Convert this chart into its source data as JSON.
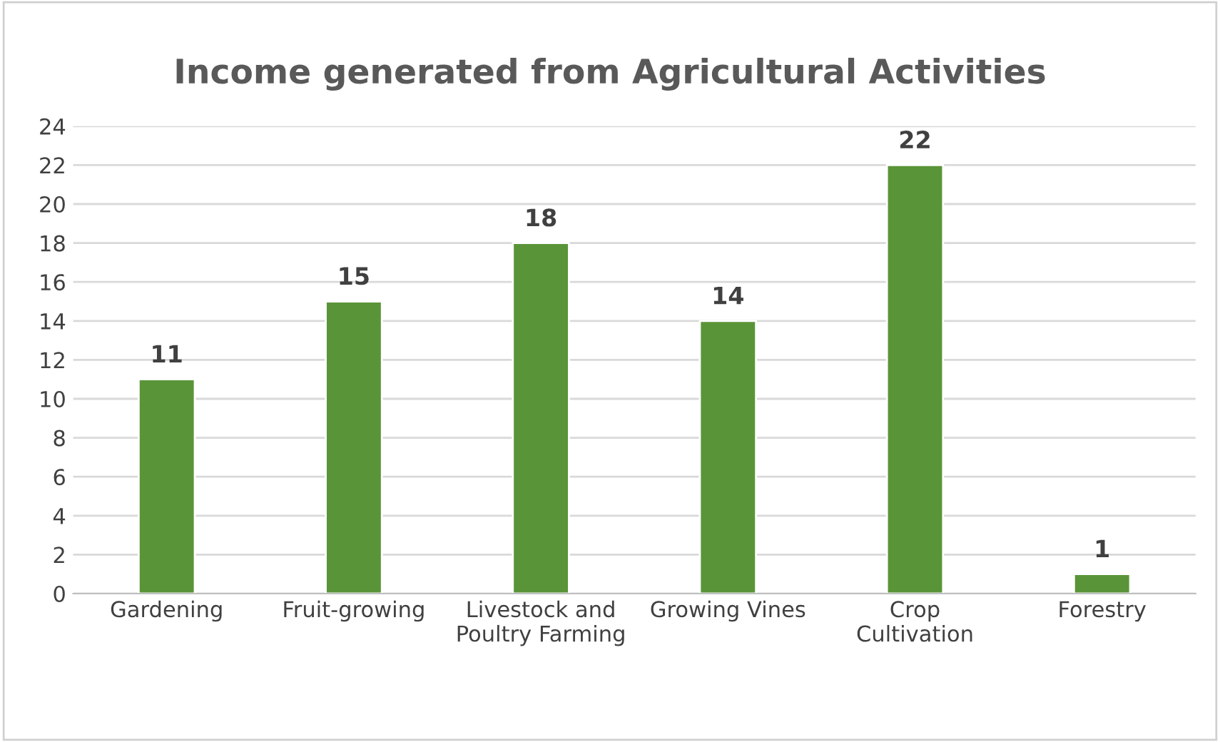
{
  "chart_data": {
    "type": "bar",
    "title": "Income generated from Agricultural Activities",
    "categories": [
      "Gardening",
      "Fruit-growing",
      "Livestock and Poultry Farming",
      "Growing Vines",
      "Crop Cultivation",
      "Forestry"
    ],
    "values": [
      11,
      15,
      18,
      14,
      22,
      1
    ],
    "color": "#5a9438",
    "ylim": [
      0,
      24
    ],
    "yticks": [
      0,
      2,
      4,
      6,
      8,
      10,
      12,
      14,
      16,
      18,
      20,
      22,
      24
    ],
    "grid": "y",
    "data_labels": true
  }
}
